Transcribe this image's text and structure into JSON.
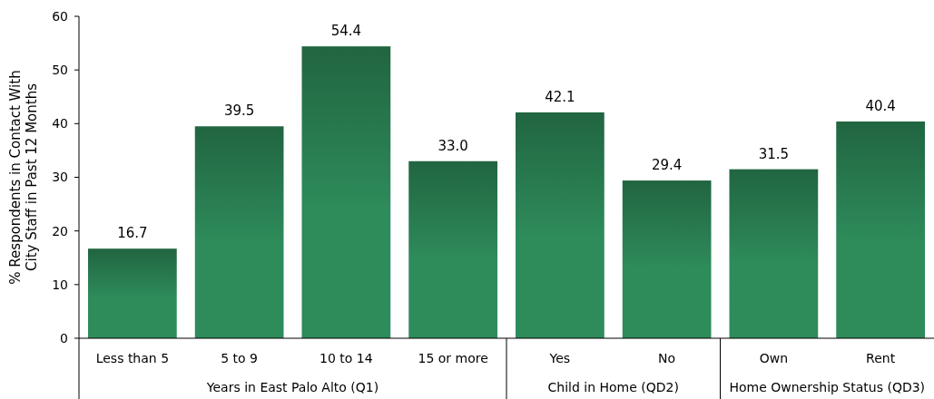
{
  "chart_data": {
    "type": "bar",
    "ylabel": "% Respondents in Contact With\nCity Staff in Past 12 Months",
    "categories": [
      "Less than 5",
      "5 to 9",
      "10 to 14",
      "15 or more",
      "Yes",
      "No",
      "Own",
      "Rent"
    ],
    "values": [
      16.7,
      39.5,
      54.4,
      33.0,
      42.1,
      29.4,
      31.5,
      40.4
    ],
    "value_labels": [
      "16.7",
      "39.5",
      "54.4",
      "33.0",
      "42.1",
      "29.4",
      "31.5",
      "40.4"
    ],
    "color": "#2e8b5a",
    "ylim": [
      0,
      60
    ],
    "yticks": [
      0,
      10,
      20,
      30,
      40,
      50,
      60
    ],
    "grid": false,
    "annotations": [
      "Years in East Palo Alto (Q1)",
      "Child in Home (QD2)",
      "Home Ownership Status (QD3)"
    ]
  }
}
